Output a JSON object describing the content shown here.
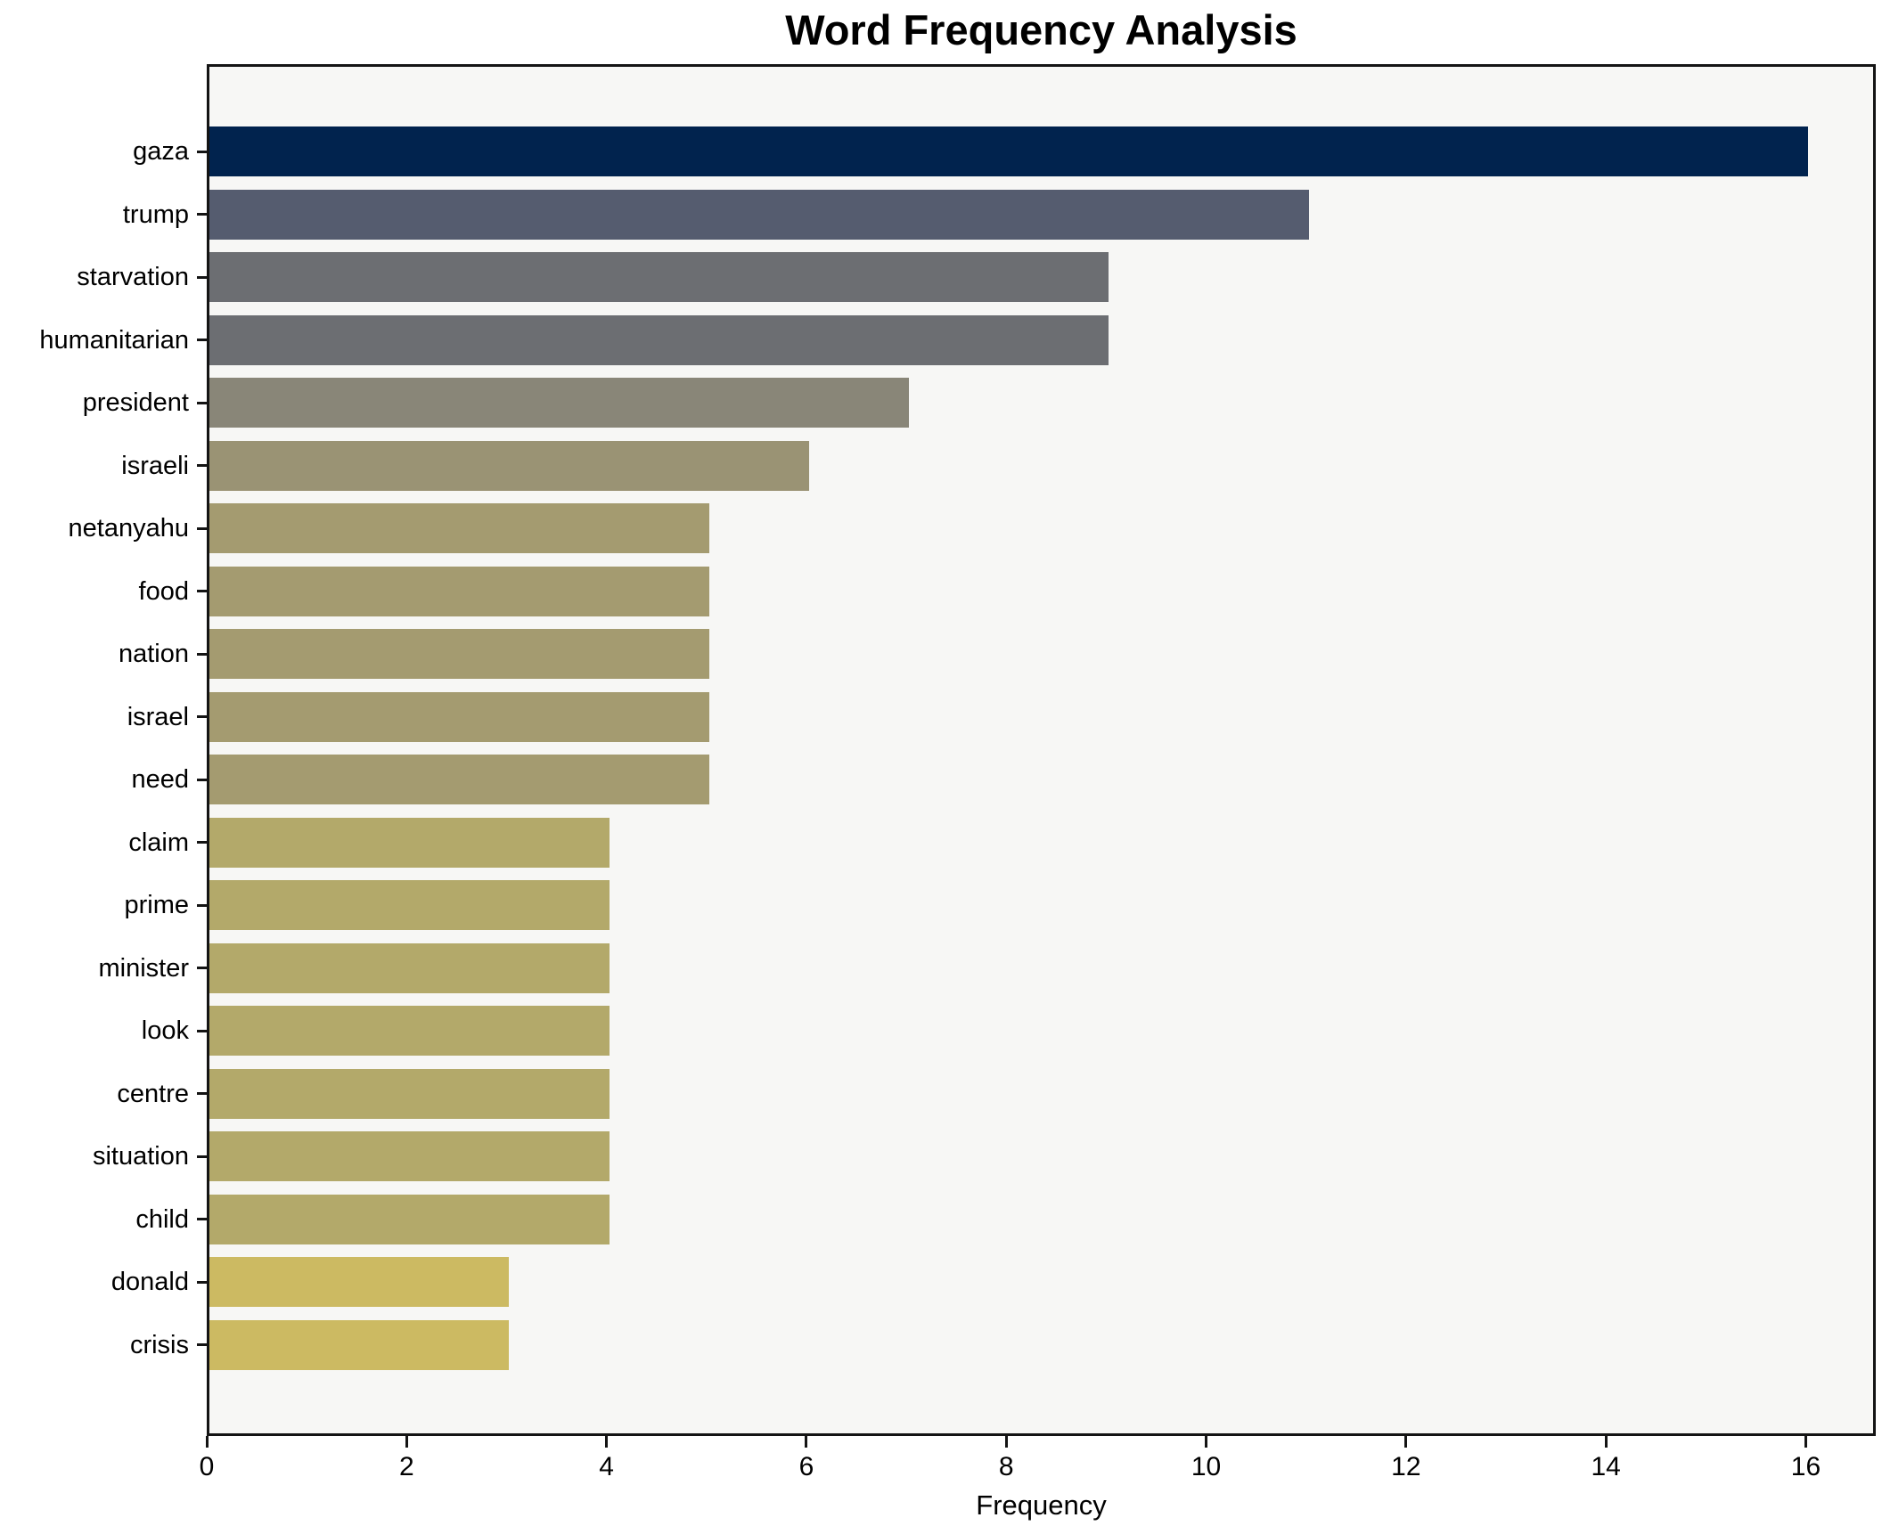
{
  "chart_data": {
    "type": "bar",
    "orientation": "horizontal",
    "title": "Word Frequency Analysis",
    "xlabel": "Frequency",
    "ylabel": "",
    "xlim": [
      0,
      16.7
    ],
    "xticks": [
      0,
      2,
      4,
      6,
      8,
      10,
      12,
      14,
      16
    ],
    "grid": false,
    "legend_position": "none",
    "colormap": "cividis",
    "categories": [
      "gaza",
      "trump",
      "starvation",
      "humanitarian",
      "president",
      "israeli",
      "netanyahu",
      "food",
      "nation",
      "israel",
      "need",
      "claim",
      "prime",
      "minister",
      "look",
      "centre",
      "situation",
      "child",
      "donald",
      "crisis"
    ],
    "values": [
      16,
      11,
      9,
      9,
      7,
      6,
      5,
      5,
      5,
      5,
      5,
      4,
      4,
      4,
      4,
      4,
      4,
      4,
      3,
      3
    ],
    "bar_colors": [
      "#01234e",
      "#555c6f",
      "#6c6e72",
      "#6c6e72",
      "#898678",
      "#9a9374",
      "#a49b70",
      "#a49b70",
      "#a49b70",
      "#a49b70",
      "#a49b70",
      "#b3a96a",
      "#b3a96a",
      "#b3a96a",
      "#b3a96a",
      "#b3a96a",
      "#b3a96a",
      "#b3a96a",
      "#ccba62",
      "#ccba62"
    ]
  },
  "colors": {
    "figure_bg": "#ffffff",
    "plot_bg": "#f7f7f5",
    "spine": "#141414",
    "text": "#000000"
  }
}
